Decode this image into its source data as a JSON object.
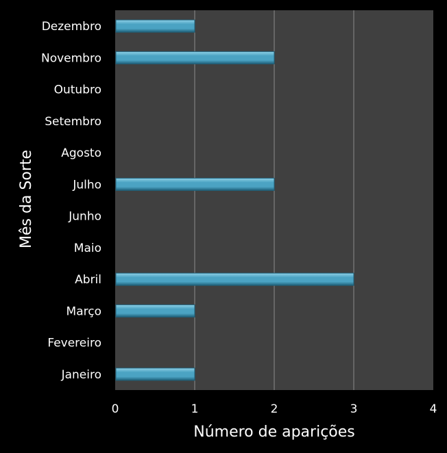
{
  "chart_data": {
    "type": "bar",
    "orientation": "horizontal",
    "categories": [
      "Janeiro",
      "Fevereiro",
      "Março",
      "Abril",
      "Maio",
      "Junho",
      "Julho",
      "Agosto",
      "Setembro",
      "Outubro",
      "Novembro",
      "Dezembro"
    ],
    "values": [
      1,
      0,
      1,
      3,
      0,
      0,
      2,
      0,
      0,
      0,
      2,
      1
    ],
    "xlabel": "Número de aparições",
    "ylabel": "Mês da Sorte",
    "xlim": [
      0,
      4
    ],
    "xticks": [
      0,
      1,
      2,
      3,
      4
    ],
    "grid": "vertical",
    "colors": {
      "background": "#000000",
      "plot_area": "#404040",
      "gridline": "#8c8c8c",
      "bar": "#4ba3c3",
      "bar_light": "#8fd0e6",
      "bar_dark": "#1f5f78",
      "text": "#ffffff"
    }
  }
}
